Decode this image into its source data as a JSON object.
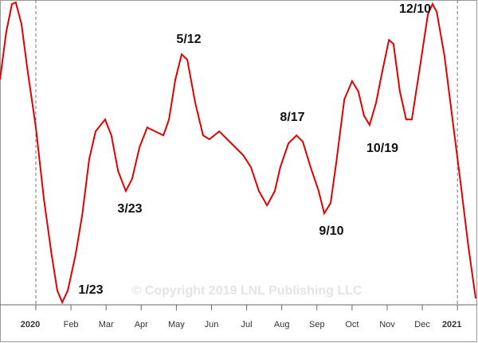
{
  "chart_data": {
    "type": "line",
    "annotations": [
      "1/23",
      "3/23",
      "5/12",
      "8/17",
      "9/10",
      "10/19",
      "12/10"
    ],
    "watermark": "© Copyright 2019 LNL Publishing LLC",
    "xlim": [
      -1.02,
      12.54
    ],
    "ylim": [
      0,
      100
    ],
    "xticks": [
      {
        "value": 0,
        "label": "2020"
      },
      {
        "value": 1,
        "label": "Feb"
      },
      {
        "value": 2,
        "label": "Mar"
      },
      {
        "value": 3,
        "label": "Apr"
      },
      {
        "value": 4,
        "label": "May"
      },
      {
        "value": 5,
        "label": "Jun"
      },
      {
        "value": 6,
        "label": "Jul"
      },
      {
        "value": 7,
        "label": "Aug"
      },
      {
        "value": 8,
        "label": "Sep"
      },
      {
        "value": 9,
        "label": "Oct"
      },
      {
        "value": 10,
        "label": "Nov"
      },
      {
        "value": 11,
        "label": "Dec"
      },
      {
        "value": 12,
        "label": "2021"
      }
    ],
    "color": "#e00000",
    "x": [
      -1.02,
      -0.84,
      -0.68,
      -0.57,
      -0.41,
      -0.23,
      0,
      0.23,
      0.45,
      0.61,
      0.75,
      0.91,
      1.13,
      1.32,
      1.52,
      1.7,
      1.97,
      2.15,
      2.34,
      2.56,
      2.74,
      2.95,
      3.17,
      3.4,
      3.63,
      3.79,
      3.97,
      4.15,
      4.31,
      4.54,
      4.76,
      4.94,
      5.22,
      5.56,
      5.9,
      6.12,
      6.35,
      6.58,
      6.8,
      6.96,
      7.19,
      7.42,
      7.6,
      7.82,
      8.05,
      8.21,
      8.39,
      8.55,
      8.78,
      9.0,
      9.18,
      9.34,
      9.5,
      9.68,
      9.86,
      10.05,
      10.18,
      10.36,
      10.54,
      10.7,
      10.93,
      11.16,
      11.29,
      11.41,
      11.63,
      11.86,
      12.09,
      12.31,
      12.52
    ],
    "values": [
      73.9,
      89.6,
      98.7,
      99.2,
      92.2,
      76.5,
      58.2,
      34.7,
      16.4,
      4.7,
      0.8,
      4.7,
      16.4,
      29.5,
      47.8,
      56.9,
      60.8,
      55.6,
      43.9,
      37.3,
      41.3,
      51.7,
      58.2,
      56.9,
      55.6,
      60.8,
      73.9,
      82.2,
      80.4,
      66.1,
      55.6,
      54.3,
      56.9,
      53.0,
      49.1,
      45.2,
      37.3,
      32.6,
      37.3,
      45.2,
      53.0,
      55.6,
      53.5,
      45.2,
      37.3,
      30.0,
      33.4,
      46.5,
      67.4,
      73.4,
      70.0,
      62.1,
      59.0,
      66.1,
      76.5,
      86.9,
      85.6,
      70.0,
      60.8,
      60.8,
      77.8,
      95.3,
      98.7,
      96.1,
      81.7,
      60.8,
      39.9,
      19.1,
      2.1
    ]
  }
}
